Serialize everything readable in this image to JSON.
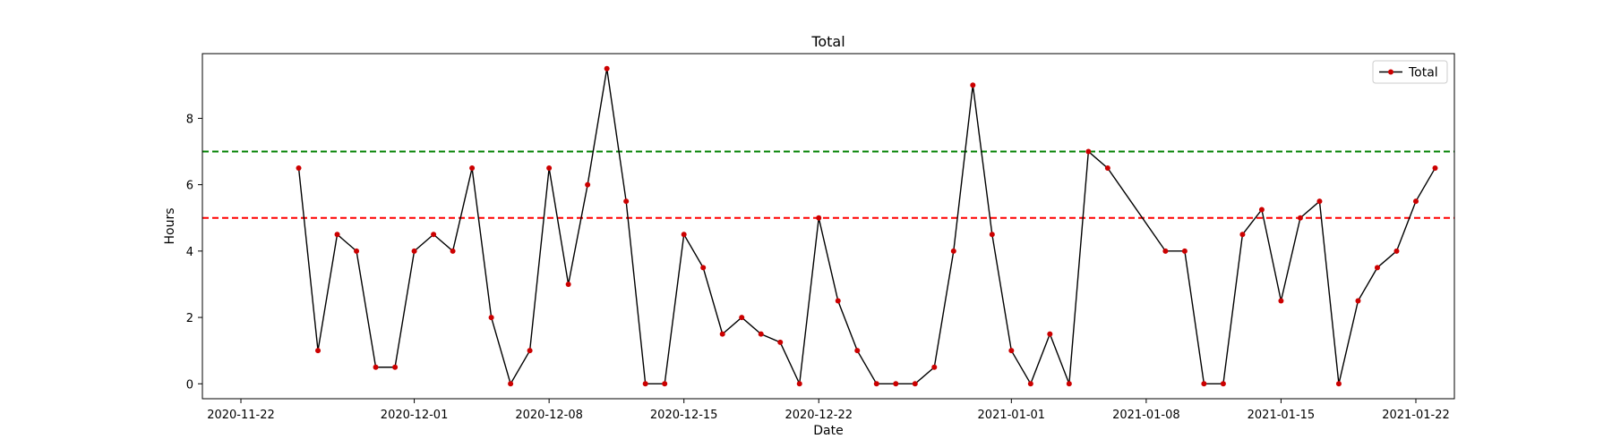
{
  "chart_data": {
    "type": "line",
    "title": "Total",
    "xlabel": "Date",
    "ylabel": "Hours",
    "xlim": [
      "2020-11-20",
      "2021-01-24"
    ],
    "ylim": [
      -0.45,
      9.95
    ],
    "x_ticks": [
      "2020-11-22",
      "2020-12-01",
      "2020-12-08",
      "2020-12-15",
      "2020-12-22",
      "2021-01-01",
      "2021-01-08",
      "2021-01-15",
      "2021-01-22"
    ],
    "y_ticks": [
      0,
      2,
      4,
      6,
      8
    ],
    "legend_position": "top-right",
    "grid": false,
    "series": [
      {
        "name": "Total",
        "color": "#000000",
        "marker_color": "#cc0000",
        "points": [
          [
            "2020-11-25",
            6.5
          ],
          [
            "2020-11-26",
            1
          ],
          [
            "2020-11-27",
            4.5
          ],
          [
            "2020-11-28",
            4
          ],
          [
            "2020-11-29",
            0.5
          ],
          [
            "2020-11-30",
            0.5
          ],
          [
            "2020-12-01",
            4
          ],
          [
            "2020-12-02",
            4.5
          ],
          [
            "2020-12-03",
            4
          ],
          [
            "2020-12-04",
            6.5
          ],
          [
            "2020-12-05",
            2
          ],
          [
            "2020-12-06",
            0
          ],
          [
            "2020-12-07",
            1
          ],
          [
            "2020-12-08",
            6.5
          ],
          [
            "2020-12-09",
            3
          ],
          [
            "2020-12-10",
            6
          ],
          [
            "2020-12-11",
            9.5
          ],
          [
            "2020-12-12",
            5.5
          ],
          [
            "2020-12-13",
            0
          ],
          [
            "2020-12-14",
            0
          ],
          [
            "2020-12-15",
            4.5
          ],
          [
            "2020-12-16",
            3.5
          ],
          [
            "2020-12-17",
            1.5
          ],
          [
            "2020-12-18",
            2
          ],
          [
            "2020-12-19",
            1.5
          ],
          [
            "2020-12-20",
            1.25
          ],
          [
            "2020-12-21",
            0
          ],
          [
            "2020-12-22",
            5
          ],
          [
            "2020-12-23",
            2.5
          ],
          [
            "2020-12-24",
            1
          ],
          [
            "2020-12-25",
            0
          ],
          [
            "2020-12-26",
            0
          ],
          [
            "2020-12-27",
            0
          ],
          [
            "2020-12-28",
            0.5
          ],
          [
            "2020-12-29",
            4
          ],
          [
            "2020-12-30",
            9
          ],
          [
            "2020-12-31",
            4.5
          ],
          [
            "2021-01-01",
            1
          ],
          [
            "2021-01-02",
            0
          ],
          [
            "2021-01-03",
            1.5
          ],
          [
            "2021-01-04",
            0
          ],
          [
            "2021-01-05",
            7
          ],
          [
            "2021-01-06",
            6.5
          ],
          [
            "2021-01-09",
            4
          ],
          [
            "2021-01-10",
            4
          ],
          [
            "2021-01-11",
            0
          ],
          [
            "2021-01-12",
            0
          ],
          [
            "2021-01-13",
            4.5
          ],
          [
            "2021-01-14",
            5.25
          ],
          [
            "2021-01-15",
            2.5
          ],
          [
            "2021-01-16",
            5
          ],
          [
            "2021-01-17",
            5.5
          ],
          [
            "2021-01-18",
            0
          ],
          [
            "2021-01-19",
            2.5
          ],
          [
            "2021-01-20",
            3.5
          ],
          [
            "2021-01-21",
            4
          ],
          [
            "2021-01-22",
            5.5
          ],
          [
            "2021-01-23",
            6.5
          ]
        ]
      }
    ],
    "reference_lines": [
      {
        "y": 7,
        "color": "#008000",
        "style": "dashed"
      },
      {
        "y": 5,
        "color": "#ff0000",
        "style": "dashed"
      }
    ]
  }
}
